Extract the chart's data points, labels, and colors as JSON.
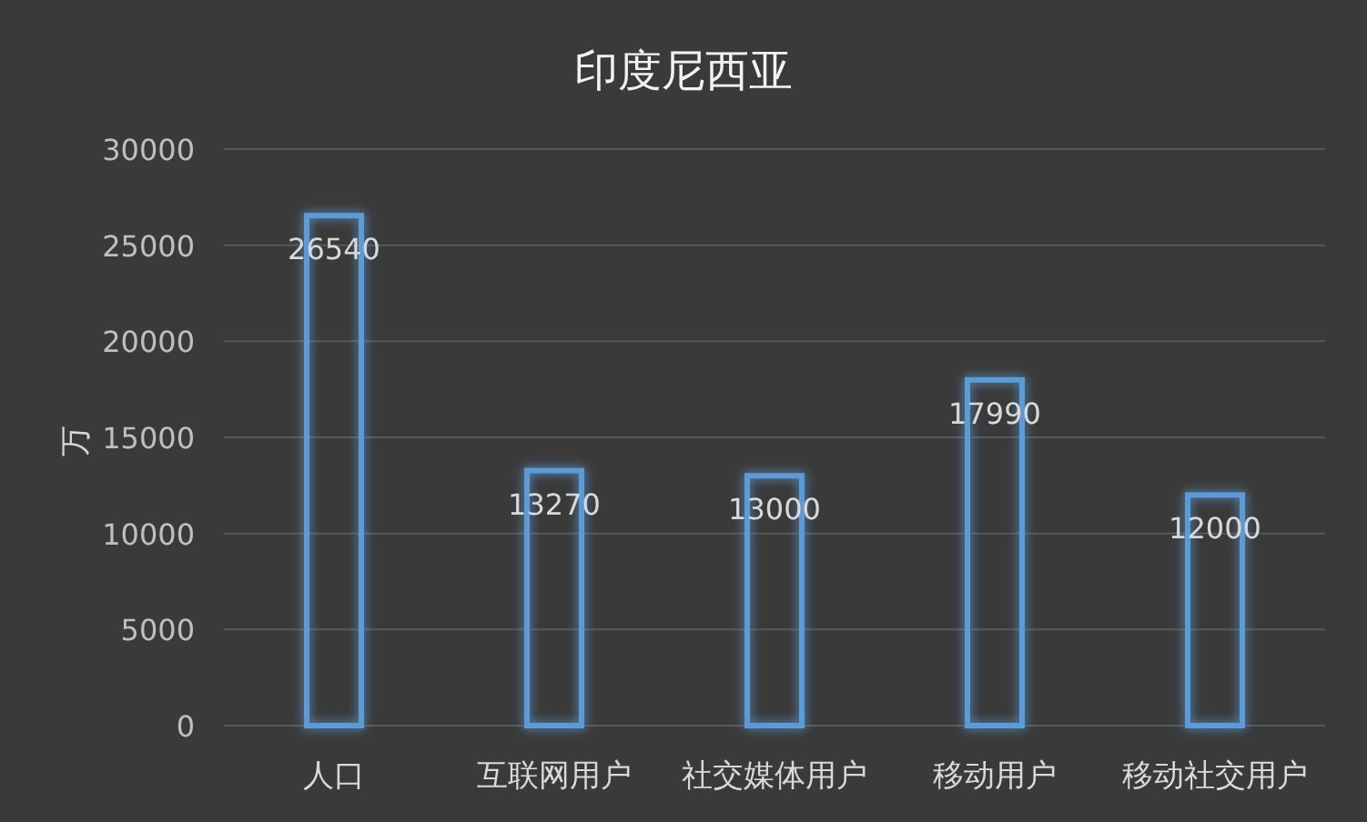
{
  "chart_data": {
    "type": "bar",
    "title": "印度尼西亚",
    "ylabel": "万",
    "categories": [
      "人口",
      "互联网用户",
      "社交媒体用户",
      "移动用户",
      "移动社交用户"
    ],
    "values": [
      26540,
      13270,
      13000,
      17990,
      12000
    ],
    "color": "#5b9bd5",
    "ylim": [
      0,
      30000
    ],
    "yticks": [
      0,
      5000,
      10000,
      15000,
      20000,
      25000,
      30000
    ],
    "grid": "y",
    "data_labels": true
  }
}
